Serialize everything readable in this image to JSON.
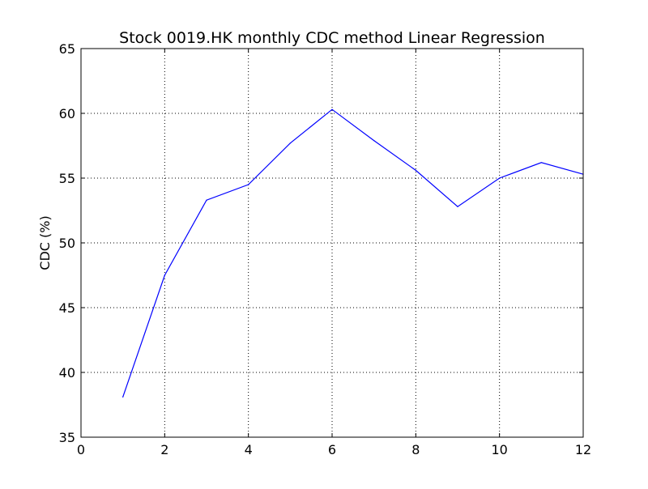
{
  "chart_data": {
    "type": "line",
    "title": "Stock 0019.HK monthly CDC method Linear Regression",
    "xlabel": "",
    "ylabel": "CDC (%)",
    "xlim": [
      0,
      12
    ],
    "ylim": [
      35,
      65
    ],
    "x_ticks": [
      0,
      2,
      4,
      6,
      8,
      10,
      12
    ],
    "y_ticks": [
      35,
      40,
      45,
      50,
      55,
      60,
      65
    ],
    "grid": true,
    "legend": "none",
    "series": [
      {
        "color": "#0000ff",
        "x": [
          1,
          2,
          3,
          4,
          5,
          6,
          7,
          8,
          9,
          10,
          11,
          12
        ],
        "values": [
          38.1,
          47.5,
          53.3,
          54.5,
          57.7,
          60.3,
          57.9,
          55.6,
          52.8,
          55.0,
          56.2,
          55.3
        ]
      }
    ]
  }
}
